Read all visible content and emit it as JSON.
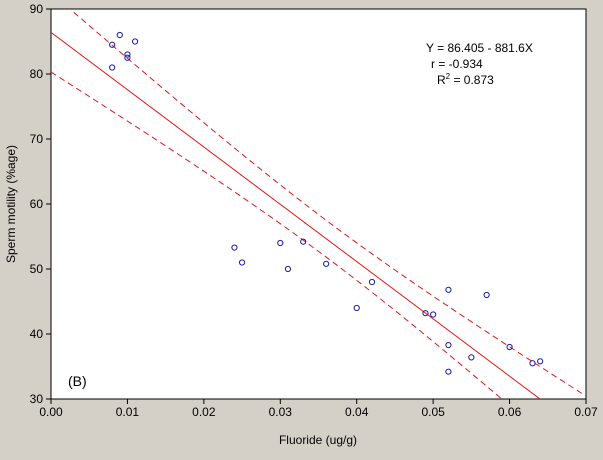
{
  "chart_data": {
    "type": "scatter",
    "panel_label": "(B)",
    "xlabel": "Fluoride (ug/g)",
    "ylabel": "Sperm motility (%age)",
    "xlim": [
      0.0,
      0.07
    ],
    "ylim": [
      30,
      90
    ],
    "x_ticks": [
      "0.00",
      "0.01",
      "0.02",
      "0.03",
      "0.04",
      "0.05",
      "0.06",
      "0.07"
    ],
    "y_ticks": [
      "30",
      "40",
      "50",
      "60",
      "70",
      "80",
      "90"
    ],
    "grid": false,
    "annotation": {
      "equation": "Y = 86.405 - 881.6X",
      "r": "r = -0.934",
      "r2_prefix": "R",
      "r2_exp": "2",
      "r2_value": " = 0.873"
    },
    "regression": {
      "intercept": 86.405,
      "slope": -881.6
    },
    "points": [
      {
        "x": 0.008,
        "y": 84.5
      },
      {
        "x": 0.009,
        "y": 86.0
      },
      {
        "x": 0.011,
        "y": 85.0
      },
      {
        "x": 0.008,
        "y": 81.0
      },
      {
        "x": 0.01,
        "y": 83.0
      },
      {
        "x": 0.01,
        "y": 82.5
      },
      {
        "x": 0.024,
        "y": 53.3
      },
      {
        "x": 0.025,
        "y": 51.0
      },
      {
        "x": 0.03,
        "y": 54.0
      },
      {
        "x": 0.031,
        "y": 50.0
      },
      {
        "x": 0.033,
        "y": 54.2
      },
      {
        "x": 0.036,
        "y": 50.8
      },
      {
        "x": 0.04,
        "y": 44.0
      },
      {
        "x": 0.042,
        "y": 48.0
      },
      {
        "x": 0.049,
        "y": 43.2
      },
      {
        "x": 0.05,
        "y": 43.0
      },
      {
        "x": 0.052,
        "y": 46.8
      },
      {
        "x": 0.052,
        "y": 38.3
      },
      {
        "x": 0.052,
        "y": 34.2
      },
      {
        "x": 0.055,
        "y": 36.4
      },
      {
        "x": 0.057,
        "y": 46.0
      },
      {
        "x": 0.06,
        "y": 38.0
      },
      {
        "x": 0.063,
        "y": 35.5
      },
      {
        "x": 0.064,
        "y": 35.8
      }
    ],
    "colors": {
      "background": "#d4d0c8",
      "plot_background": "#ffffff",
      "points": "#1a1aa6",
      "regression": "#e01818",
      "axis": "#000000"
    }
  }
}
